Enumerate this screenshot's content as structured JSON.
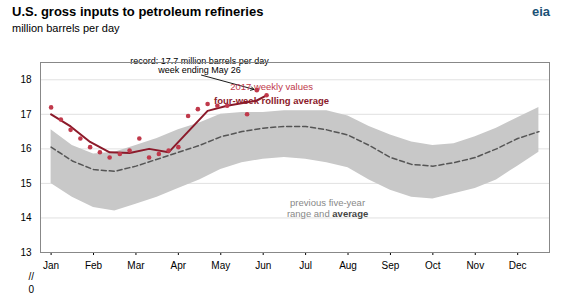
{
  "chart_data": {
    "type": "line",
    "title": "U.S. gross inputs to petroleum refineries",
    "subtitle": "million barrels per day",
    "logo": "eia",
    "series": [
      {
        "name": "previous five-year\nrange and",
        "type": "area",
        "color": "#c8c8c8",
        "x": [
          0,
          0.5,
          1.0,
          1.5,
          2.0,
          2.5,
          3.0,
          3.5,
          4.0,
          4.5,
          5.0,
          5.5,
          6.0,
          6.5,
          7.0,
          7.5,
          8.0,
          8.5,
          9.0,
          9.5,
          10.0,
          10.5,
          11.0,
          11.5
        ],
        "low": [
          15.0,
          14.6,
          14.3,
          14.2,
          14.4,
          14.6,
          14.85,
          15.1,
          15.4,
          15.6,
          15.7,
          15.75,
          15.7,
          15.6,
          15.45,
          15.1,
          14.8,
          14.6,
          14.55,
          14.7,
          14.85,
          15.1,
          15.5,
          15.9
        ],
        "high": [
          16.55,
          16.1,
          15.85,
          15.9,
          16.1,
          16.3,
          16.55,
          16.75,
          17.0,
          17.05,
          17.05,
          17.1,
          17.1,
          17.1,
          16.95,
          16.65,
          16.4,
          16.2,
          16.1,
          16.15,
          16.35,
          16.6,
          16.9,
          17.2
        ]
      },
      {
        "name": "average",
        "type": "line",
        "line_style": "dashed",
        "color": "#555555",
        "x": [
          0,
          0.5,
          1.0,
          1.5,
          2.0,
          2.5,
          3.0,
          3.5,
          4.0,
          4.5,
          5.0,
          5.5,
          6.0,
          6.5,
          7.0,
          7.5,
          8.0,
          8.5,
          9.0,
          9.5,
          10.0,
          10.5,
          11.0,
          11.5
        ],
        "values": [
          16.05,
          15.65,
          15.4,
          15.35,
          15.5,
          15.7,
          15.9,
          16.1,
          16.35,
          16.5,
          16.6,
          16.65,
          16.65,
          16.55,
          16.4,
          16.1,
          15.75,
          15.55,
          15.5,
          15.6,
          15.75,
          16.0,
          16.3,
          16.5
        ]
      },
      {
        "name": "four-week rolling average",
        "type": "line",
        "line_style": "solid",
        "color": "#8b1a2a",
        "x": [
          0.0,
          0.46,
          0.92,
          1.38,
          1.85,
          2.31,
          2.77,
          3.23,
          3.69,
          4.15,
          4.85,
          5.08
        ],
        "values": [
          17.0,
          16.65,
          16.2,
          15.9,
          15.88,
          16.0,
          15.9,
          16.5,
          17.1,
          17.25,
          17.4,
          17.55
        ]
      },
      {
        "name": "2017 weekly values",
        "type": "scatter",
        "marker": "circle",
        "color": "#c0394b",
        "x": [
          0.0,
          0.23,
          0.46,
          0.69,
          0.92,
          1.15,
          1.38,
          1.62,
          1.85,
          2.08,
          2.31,
          2.54,
          2.77,
          3.0,
          3.23,
          3.46,
          3.69,
          3.92,
          4.15,
          4.62,
          4.85,
          5.08
        ],
        "values": [
          17.2,
          16.85,
          16.55,
          16.3,
          16.05,
          15.9,
          15.75,
          15.85,
          15.95,
          16.3,
          15.75,
          15.85,
          15.95,
          16.05,
          16.95,
          17.15,
          17.3,
          17.25,
          17.25,
          17.0,
          17.7,
          17.55
        ]
      }
    ],
    "annotations": [
      {
        "text": "record: 17.7 million barrels per day\nweek ending May 26",
        "x": 4.85,
        "y": 17.7,
        "text_x": 3.5,
        "text_y": 18.15
      }
    ],
    "axis_break": [
      "//",
      "0"
    ],
    "xlim": [
      -0.25,
      11.75
    ],
    "xticks": [
      {
        "value": 0,
        "label": "Jan"
      },
      {
        "value": 1,
        "label": "Feb"
      },
      {
        "value": 2,
        "label": "Mar"
      },
      {
        "value": 3,
        "label": "Apr"
      },
      {
        "value": 4,
        "label": "May"
      },
      {
        "value": 5,
        "label": "Jun"
      },
      {
        "value": 6,
        "label": "Jul"
      },
      {
        "value": 7,
        "label": "Aug"
      },
      {
        "value": 8,
        "label": "Sep"
      },
      {
        "value": 9,
        "label": "Oct"
      },
      {
        "value": 10,
        "label": "Nov"
      },
      {
        "value": 11,
        "label": "Dec"
      }
    ],
    "ylim": [
      13.0,
      18.5
    ],
    "yticks": [
      13,
      14,
      15,
      16,
      17,
      18
    ],
    "grid": true
  }
}
